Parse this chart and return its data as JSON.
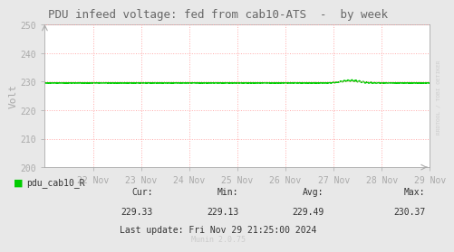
{
  "title": "PDU infeed voltage: fed from cab10-ATS  -  by week",
  "ylabel": "Volt",
  "outer_bg": "#e8e8e8",
  "plot_bg": "#ffffff",
  "line_color": "#00cc00",
  "line_width": 1.0,
  "ylim": [
    200,
    250
  ],
  "yticks": [
    200,
    210,
    220,
    230,
    240,
    250
  ],
  "x_tick_labels": [
    "22 Nov",
    "23 Nov",
    "24 Nov",
    "25 Nov",
    "26 Nov",
    "27 Nov",
    "28 Nov",
    "29 Nov"
  ],
  "x_tick_positions": [
    1,
    2,
    3,
    4,
    5,
    6,
    7,
    8
  ],
  "base_voltage": 229.49,
  "legend_label": "pdu_cab10_R",
  "legend_color": "#00cc00",
  "cur_val": "229.33",
  "min_val": "229.13",
  "avg_val": "229.49",
  "max_val": "230.37",
  "last_update": "Last update: Fri Nov 29 21:25:00 2024",
  "munin_label": "Munin 2.0.75",
  "grid_color": "#ffaaaa",
  "grid_linestyle": ":",
  "tick_color": "#aaaaaa",
  "text_color": "#333333",
  "watermark": "RRDTOOL / TOBI OETIKER",
  "watermark_color": "#cccccc",
  "spine_color": "#aaaaaa"
}
